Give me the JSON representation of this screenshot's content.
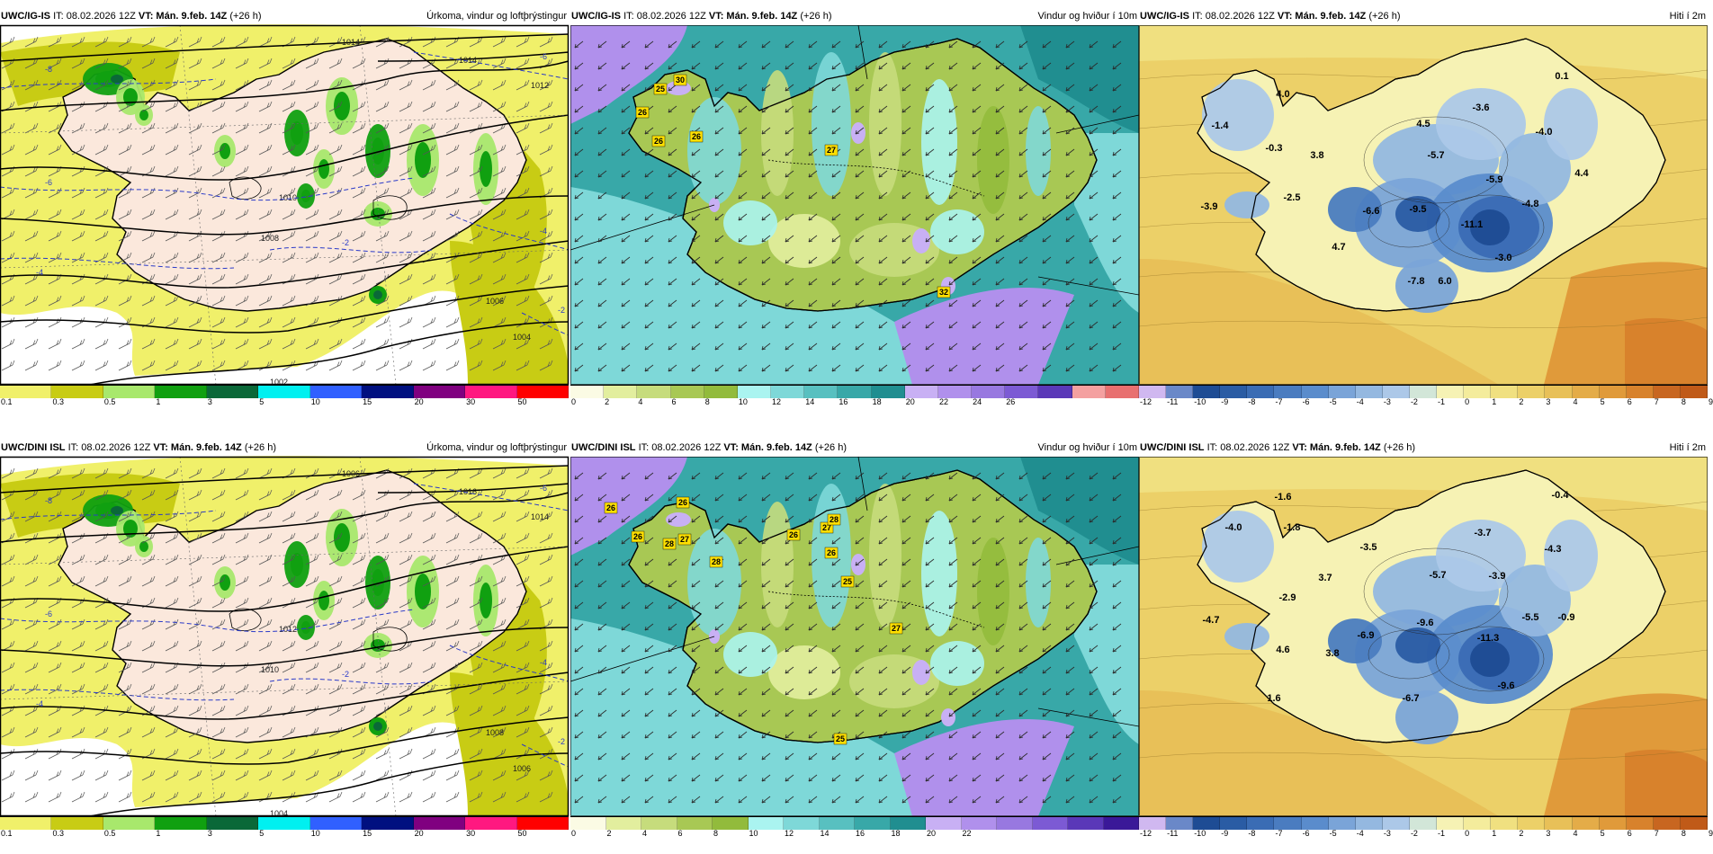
{
  "panels": [
    {
      "row": 0,
      "col": 0,
      "kind": "precip",
      "model": "UWC/IG-IS",
      "it": "IT: 08.02.2026 12Z",
      "vt_label": "VT:",
      "vt_value": "Mán. 9.feb. 14Z",
      "lead": "(+26 h)",
      "title": "Úrkoma, vindur og loftþrýstingur",
      "isobars": [
        "1014",
        "1012",
        "1010",
        "1008",
        "1006",
        "1004",
        "1002",
        "1014"
      ],
      "temp_lines": [
        "-8",
        "-6",
        "-4",
        "-2",
        "-6",
        "-4",
        "-2"
      ],
      "values": [],
      "colorbar": {
        "colors": [
          "#f0f06a",
          "#c8cc14",
          "#a8e86c",
          "#10a010",
          "#0a6838",
          "#00f0f0",
          "#3060ff",
          "#001080",
          "#800080",
          "#ff1880",
          "#ff0000"
        ],
        "ticks": [
          "0.1",
          "0.3",
          "0.5",
          "1",
          "3",
          "5",
          "10",
          "15",
          "20",
          "30",
          "50"
        ]
      }
    },
    {
      "row": 0,
      "col": 1,
      "kind": "wind",
      "model": "UWC/IG-IS",
      "it": "IT: 08.02.2026 12Z",
      "vt_label": "VT:",
      "vt_value": "Mán. 9.feb. 14Z",
      "lead": "(+26 h)",
      "title": "Vindur og hviður í 10m",
      "gusts": [
        "25",
        "30",
        "26",
        "26",
        "26",
        "27",
        "32"
      ],
      "colorbar": {
        "colors": [
          "#fbfbe4",
          "#e2ee9e",
          "#c6dc7c",
          "#a8c854",
          "#92bb3c",
          "#aaf4f0",
          "#7ed8d8",
          "#58c0c0",
          "#38a8a8",
          "#208e90",
          "#c8b0f4",
          "#b090ec",
          "#9878e0",
          "#7c5ad4",
          "#5a38b8",
          "#f4a0a0",
          "#e87070"
        ],
        "ticks": [
          "0",
          "2",
          "4",
          "6",
          "8",
          "10",
          "12",
          "14",
          "16",
          "18",
          "20",
          "22",
          "24",
          "26"
        ]
      }
    },
    {
      "row": 0,
      "col": 2,
      "kind": "temp",
      "model": "UWC/IG-IS",
      "it": "IT: 08.02.2026 12Z",
      "vt_label": "VT:",
      "vt_value": "Mán. 9.feb. 14Z",
      "lead": "(+26 h)",
      "title": "Hiti í 2m",
      "values": [
        "4.0",
        "-1.4",
        "-0.3",
        "3.8",
        "-2.5",
        "-3.9",
        "4.7",
        "-6.6",
        "-9.5",
        "-11.1",
        "-7.8",
        "6.0",
        "-3.0",
        "-4.8",
        "4.4",
        "-5.9",
        "-5.7",
        "-3.6",
        "4.5",
        "-4.0",
        "0.1"
      ],
      "colorbar": {
        "colors": [
          "#d0b8f0",
          "#6a88c8",
          "#1e4c94",
          "#2a5ca4",
          "#3a6cb4",
          "#4a7cc0",
          "#5a8ccc",
          "#7aa4d8",
          "#94b8e0",
          "#acc8e8",
          "#d2e6d8",
          "#f6f2b4",
          "#f4ec9c",
          "#f0e080",
          "#ecd068",
          "#e8c058",
          "#e4ac48",
          "#e09a3a",
          "#d8822c",
          "#c86620",
          "#c05a18"
        ],
        "ticks": [
          "-12",
          "-11",
          "-10",
          "-9",
          "-8",
          "-7",
          "-6",
          "-5",
          "-4",
          "-3",
          "-2",
          "-1",
          "0",
          "1",
          "2",
          "3",
          "4",
          "5",
          "6",
          "7",
          "8",
          "9"
        ]
      }
    },
    {
      "row": 1,
      "col": 0,
      "kind": "precip",
      "model": "UWC/DINI ISL",
      "it": "IT: 08.02.2026 12Z",
      "vt_label": "VT:",
      "vt_value": "Mán. 9.feb. 14Z",
      "lead": "(+26 h)",
      "title": "Úrkoma, vindur og loftþrýstingur",
      "isobars": [
        "1016",
        "1014",
        "1012",
        "1010",
        "1008",
        "1006",
        "1004",
        "1006"
      ],
      "temp_lines": [
        "-8",
        "-6",
        "-4",
        "-2",
        "-6",
        "-4",
        "-2"
      ],
      "values": [],
      "colorbar": {
        "colors": [
          "#f0f06a",
          "#c8cc14",
          "#a8e86c",
          "#10a010",
          "#0a6838",
          "#00f0f0",
          "#3060ff",
          "#001080",
          "#800080",
          "#ff1880",
          "#ff0000"
        ],
        "ticks": [
          "0.1",
          "0.3",
          "0.5",
          "1",
          "3",
          "5",
          "10",
          "15",
          "20",
          "30",
          "50"
        ]
      }
    },
    {
      "row": 1,
      "col": 1,
      "kind": "wind",
      "model": "UWC/DINI ISL",
      "it": "IT: 08.02.2026 12Z",
      "vt_label": "VT:",
      "vt_value": "Mán. 9.feb. 14Z",
      "lead": "(+26 h)",
      "title": "Vindur og hviður í 10m",
      "gusts": [
        "26",
        "26",
        "26",
        "27",
        "28",
        "28",
        "26",
        "27",
        "28",
        "26",
        "25",
        "27",
        "25"
      ],
      "colorbar": {
        "colors": [
          "#fbfbe4",
          "#e2ee9e",
          "#c6dc7c",
          "#a8c854",
          "#92bb3c",
          "#aaf4f0",
          "#7ed8d8",
          "#58c0c0",
          "#38a8a8",
          "#208e90",
          "#c8b0f4",
          "#b090ec",
          "#9878e0",
          "#7c5ad4",
          "#5a38b8",
          "#3a1898"
        ],
        "ticks": [
          "0",
          "2",
          "4",
          "6",
          "8",
          "10",
          "12",
          "14",
          "16",
          "18",
          "20",
          "22"
        ]
      }
    },
    {
      "row": 1,
      "col": 2,
      "kind": "temp",
      "model": "UWC/DINI ISL",
      "it": "IT: 08.02.2026 12Z",
      "vt_label": "VT:",
      "vt_value": "Mán. 9.feb. 14Z",
      "lead": "(+26 h)",
      "title": "Hiti í 2m",
      "values": [
        "-1.6",
        "-4.0",
        "-1.8",
        "3.7",
        "-2.9",
        "-4.7",
        "4.6",
        "3.8",
        "1.6",
        "-6.9",
        "-9.6",
        "-11.3",
        "-6.7",
        "-9.6",
        "-5.5",
        "-0.9",
        "-3.9",
        "-5.7",
        "-3.5",
        "-3.7",
        "-4.3",
        "-0.4"
      ],
      "colorbar": {
        "colors": [
          "#d0b8f0",
          "#6a88c8",
          "#1e4c94",
          "#2a5ca4",
          "#3a6cb4",
          "#4a7cc0",
          "#5a8ccc",
          "#7aa4d8",
          "#94b8e0",
          "#acc8e8",
          "#d2e6d8",
          "#f6f2b4",
          "#f4ec9c",
          "#f0e080",
          "#ecd068",
          "#e8c058",
          "#e4ac48",
          "#e09a3a",
          "#d8822c",
          "#c86620",
          "#c05a18"
        ],
        "ticks": [
          "-12",
          "-11",
          "-10",
          "-9",
          "-8",
          "-7",
          "-6",
          "-5",
          "-4",
          "-3",
          "-2",
          "-1",
          "0",
          "1",
          "2",
          "3",
          "4",
          "5",
          "6",
          "7",
          "8",
          "9"
        ]
      }
    }
  ]
}
